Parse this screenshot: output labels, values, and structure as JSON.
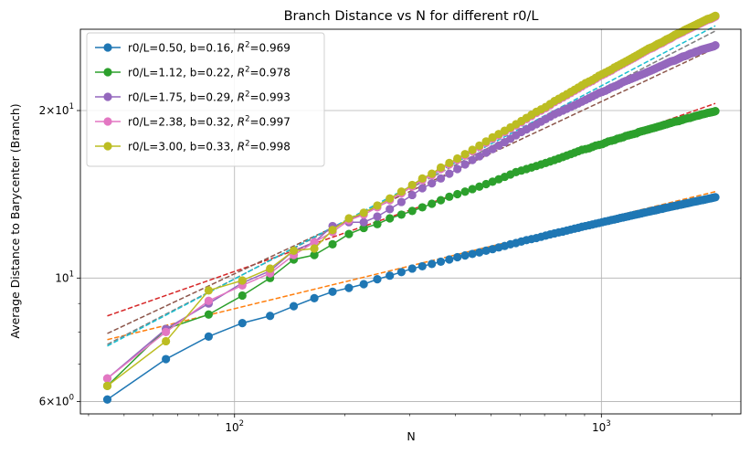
{
  "chart_data": {
    "type": "line",
    "title": "Branch Distance vs N for different r0/L",
    "xlabel": "N",
    "ylabel": "Average Distance to Barycenter (Branch)",
    "xscale": "log",
    "yscale": "log",
    "xlim": [
      38,
      2400
    ],
    "ylim": [
      5.7,
      28
    ],
    "grid": true,
    "legend_position": "upper-left",
    "x_ticks": [
      {
        "value": 100,
        "base": "10",
        "exp": "2"
      },
      {
        "value": 1000,
        "base": "10",
        "exp": "3"
      }
    ],
    "y_ticks": [
      {
        "value": 6,
        "mant": "6",
        "times": "×",
        "base": "10",
        "exp": "0"
      },
      {
        "value": 10,
        "mant": "",
        "times": "",
        "base": "10",
        "exp": "1"
      },
      {
        "value": 20,
        "mant": "2",
        "times": "×",
        "base": "10",
        "exp": "1"
      }
    ],
    "x": [
      45,
      65,
      85,
      105,
      125,
      145,
      165,
      185,
      205,
      225,
      245,
      265,
      285,
      305,
      325,
      345,
      365,
      385,
      405,
      425,
      445,
      465,
      485,
      505,
      525,
      545,
      565,
      585,
      605,
      625,
      645,
      665,
      685,
      705,
      725,
      745,
      765,
      785,
      805,
      825,
      845,
      865,
      885,
      905,
      925,
      945,
      965,
      985,
      1005,
      1025,
      1045,
      1065,
      1085,
      1105,
      1125,
      1145,
      1165,
      1185,
      1205,
      1225,
      1245,
      1265,
      1285,
      1305,
      1325,
      1345,
      1365,
      1385,
      1405,
      1425,
      1445,
      1465,
      1485,
      1505,
      1525,
      1545,
      1565,
      1585,
      1605,
      1625,
      1645,
      1665,
      1685,
      1705,
      1725,
      1745,
      1765,
      1785,
      1805,
      1825,
      1845,
      1865,
      1885,
      1905,
      1925,
      1945,
      1965,
      1985,
      2005,
      2025,
      2045
    ],
    "series": [
      {
        "name": "r0/L=0.50",
        "label_main": "r0/L=0.50, b=0.16, ",
        "r2_value": "0.969",
        "color": "#1f77b4",
        "fit_color": "#ff7f0e",
        "b": 0.16,
        "r2": 0.969,
        "fit_at_min": 7.75,
        "fit_at_max": 14.3,
        "y": [
          6.05,
          7.15,
          7.85,
          8.3,
          8.55,
          8.9,
          9.2,
          9.45,
          9.6,
          9.75,
          9.95,
          10.1,
          10.25,
          10.4,
          10.5,
          10.6,
          10.7,
          10.8,
          10.9,
          10.98,
          11.05,
          11.12,
          11.2,
          11.27,
          11.35,
          11.42,
          11.5,
          11.56,
          11.63,
          11.7,
          11.75,
          11.8,
          11.86,
          11.92,
          11.98,
          12.03,
          12.08,
          12.12,
          12.17,
          12.22,
          12.27,
          12.31,
          12.36,
          12.4,
          12.44,
          12.48,
          12.52,
          12.56,
          12.6,
          12.64,
          12.67,
          12.71,
          12.74,
          12.78,
          12.82,
          12.85,
          12.88,
          12.91,
          12.95,
          12.98,
          13.01,
          13.04,
          13.07,
          13.1,
          13.13,
          13.16,
          13.19,
          13.22,
          13.24,
          13.27,
          13.3,
          13.32,
          13.35,
          13.38,
          13.4,
          13.43,
          13.45,
          13.48,
          13.5,
          13.53,
          13.55,
          13.57,
          13.6,
          13.62,
          13.64,
          13.66,
          13.69,
          13.71,
          13.73,
          13.75,
          13.77,
          13.79,
          13.81,
          13.83,
          13.85,
          13.87,
          13.89,
          13.91,
          13.93,
          13.95,
          13.97
        ]
      },
      {
        "name": "r0/L=1.12",
        "label_main": "r0/L=1.12, b=0.22, ",
        "r2_value": "0.978",
        "color": "#2ca02c",
        "fit_color": "#d62728",
        "b": 0.22,
        "r2": 0.978,
        "fit_at_min": 8.55,
        "fit_at_max": 20.6,
        "y": [
          6.4,
          8.1,
          8.6,
          9.3,
          10.0,
          10.8,
          11.0,
          11.5,
          12.0,
          12.3,
          12.5,
          12.8,
          13.0,
          13.2,
          13.4,
          13.6,
          13.8,
          14.0,
          14.15,
          14.3,
          14.45,
          14.6,
          14.75,
          14.9,
          15.05,
          15.2,
          15.35,
          15.5,
          15.6,
          15.7,
          15.8,
          15.9,
          16.0,
          16.1,
          16.2,
          16.3,
          16.4,
          16.5,
          16.6,
          16.7,
          16.8,
          16.9,
          17.0,
          17.05,
          17.1,
          17.2,
          17.3,
          17.35,
          17.4,
          17.5,
          17.6,
          17.65,
          17.7,
          17.8,
          17.85,
          17.9,
          18.0,
          18.05,
          18.1,
          18.15,
          18.2,
          18.3,
          18.35,
          18.4,
          18.45,
          18.5,
          18.55,
          18.6,
          18.65,
          18.7,
          18.75,
          18.8,
          18.85,
          18.9,
          18.95,
          19.0,
          19.05,
          19.1,
          19.12,
          19.15,
          19.2,
          19.25,
          19.3,
          19.35,
          19.38,
          19.4,
          19.45,
          19.5,
          19.55,
          19.58,
          19.6,
          19.65,
          19.7,
          19.72,
          19.75,
          19.8,
          19.82,
          19.85,
          19.88,
          19.9,
          19.95
        ]
      },
      {
        "name": "r0/L=1.75",
        "label_main": "r0/L=1.75, b=0.29, ",
        "r2_value": "0.993",
        "color": "#9467bd",
        "fit_color": "#8c564b",
        "b": 0.29,
        "r2": 0.993,
        "fit_at_min": 7.95,
        "fit_at_max": 25.9,
        "y": [
          6.6,
          8.1,
          9.0,
          9.8,
          10.3,
          11.2,
          11.6,
          12.4,
          12.6,
          12.6,
          12.9,
          13.3,
          13.7,
          14.1,
          14.5,
          14.8,
          15.1,
          15.4,
          15.7,
          16.0,
          16.3,
          16.55,
          16.8,
          17.05,
          17.3,
          17.55,
          17.8,
          18.05,
          18.3,
          18.5,
          18.7,
          18.9,
          19.1,
          19.3,
          19.5,
          19.7,
          19.85,
          20.0,
          20.15,
          20.3,
          20.45,
          20.6,
          20.75,
          20.9,
          21.05,
          21.2,
          21.35,
          21.5,
          21.6,
          21.7,
          21.85,
          22.0,
          22.1,
          22.2,
          22.35,
          22.5,
          22.6,
          22.7,
          22.8,
          22.9,
          23.0,
          23.1,
          23.2,
          23.3,
          23.4,
          23.5,
          23.6,
          23.7,
          23.8,
          23.9,
          24.0,
          24.1,
          24.2,
          24.3,
          24.4,
          24.5,
          24.55,
          24.6,
          24.7,
          24.8,
          24.9,
          25.0,
          25.05,
          25.1,
          25.2,
          25.3,
          25.35,
          25.4,
          25.5,
          25.55,
          25.6,
          25.7,
          25.75,
          25.8,
          25.85,
          25.9,
          25.95,
          26.0,
          26.05,
          26.1,
          26.2
        ]
      },
      {
        "name": "r0/L=2.38",
        "label_main": "r0/L=2.38, b=0.32, ",
        "r2_value": "0.997",
        "color": "#e377c2",
        "fit_color": "#7f7f7f",
        "b": 0.32,
        "r2": 0.997,
        "fit_at_min": 7.6,
        "fit_at_max": 27.8,
        "y": [
          6.6,
          8.0,
          9.1,
          9.7,
          10.2,
          11.0,
          11.6,
          12.1,
          12.7,
          13.0,
          13.4,
          13.8,
          14.2,
          14.6,
          15.0,
          15.3,
          15.7,
          16.0,
          16.3,
          16.6,
          16.9,
          17.2,
          17.5,
          17.8,
          18.05,
          18.3,
          18.55,
          18.8,
          19.05,
          19.3,
          19.55,
          19.8,
          20.0,
          20.2,
          20.45,
          20.7,
          20.9,
          21.1,
          21.3,
          21.5,
          21.7,
          21.9,
          22.1,
          22.3,
          22.45,
          22.6,
          22.8,
          23.0,
          23.15,
          23.3,
          23.45,
          23.6,
          23.8,
          23.95,
          24.1,
          24.25,
          24.4,
          24.55,
          24.7,
          24.85,
          25.0,
          25.15,
          25.3,
          25.45,
          25.6,
          25.75,
          25.85,
          25.95,
          26.1,
          26.25,
          26.35,
          26.45,
          26.6,
          26.75,
          26.85,
          26.95,
          27.1,
          27.25,
          27.35,
          27.45,
          27.55,
          27.65,
          27.8,
          27.9,
          28.0,
          28.1,
          28.2,
          28.3,
          28.4,
          28.5,
          28.6,
          28.7,
          28.8,
          28.9,
          29.0,
          29.1,
          29.15,
          29.2,
          29.3,
          29.4,
          29.5
        ]
      },
      {
        "name": "r0/L=3.00",
        "label_main": "r0/L=3.00, b=0.33, ",
        "r2_value": "0.998",
        "color": "#bcbd22",
        "fit_color": "#17becf",
        "b": 0.33,
        "r2": 0.998,
        "fit_at_min": 7.55,
        "fit_at_max": 28.4,
        "y": [
          6.4,
          7.7,
          9.5,
          9.9,
          10.4,
          11.2,
          11.3,
          12.2,
          12.8,
          13.1,
          13.5,
          13.9,
          14.3,
          14.7,
          15.1,
          15.4,
          15.8,
          16.1,
          16.4,
          16.7,
          17.0,
          17.3,
          17.6,
          17.9,
          18.15,
          18.4,
          18.65,
          18.9,
          19.15,
          19.4,
          19.65,
          19.9,
          20.1,
          20.3,
          20.55,
          20.8,
          21.0,
          21.2,
          21.4,
          21.6,
          21.8,
          22.0,
          22.2,
          22.4,
          22.55,
          22.7,
          22.9,
          23.1,
          23.25,
          23.4,
          23.55,
          23.7,
          23.9,
          24.05,
          24.2,
          24.35,
          24.5,
          24.65,
          24.8,
          24.95,
          25.1,
          25.25,
          25.4,
          25.55,
          25.7,
          25.85,
          25.95,
          26.05,
          26.2,
          26.35,
          26.45,
          26.55,
          26.7,
          26.85,
          26.95,
          27.05,
          27.2,
          27.35,
          27.45,
          27.55,
          27.65,
          27.75,
          27.9,
          28.0,
          28.1,
          28.2,
          28.3,
          28.4,
          28.5,
          28.6,
          28.7,
          28.8,
          28.9,
          29.0,
          29.1,
          29.2,
          29.25,
          29.3,
          29.4,
          29.5,
          29.6
        ]
      }
    ]
  }
}
